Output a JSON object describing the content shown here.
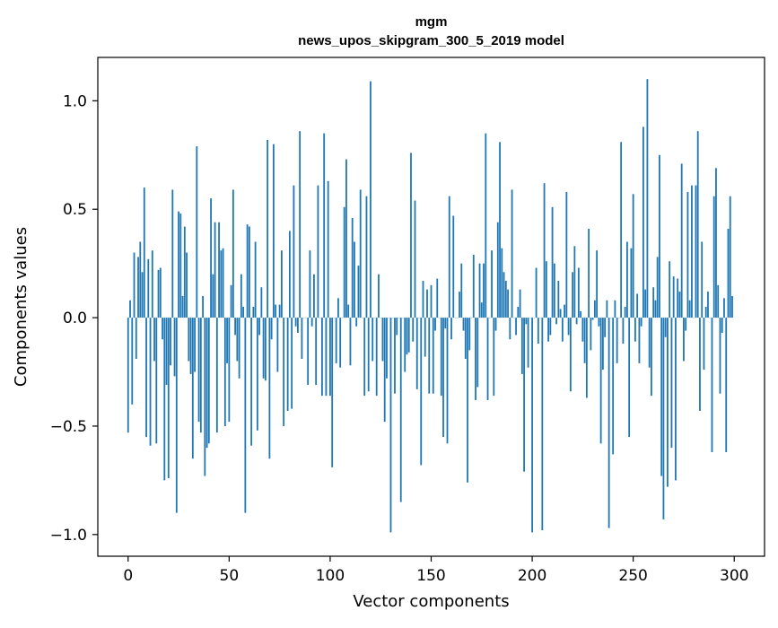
{
  "chart_data": {
    "type": "bar",
    "title": "mgm",
    "subtitle": "news_upos_skipgram_300_5_2019 model",
    "xlabel": "Vector components",
    "ylabel": "Components values",
    "xlim": [
      -15,
      315
    ],
    "ylim": [
      -1.1,
      1.2
    ],
    "xticks": [
      {
        "value": 0,
        "label": "0"
      },
      {
        "value": 50,
        "label": "50"
      },
      {
        "value": 100,
        "label": "100"
      },
      {
        "value": 150,
        "label": "150"
      },
      {
        "value": 200,
        "label": "200"
      },
      {
        "value": 250,
        "label": "250"
      },
      {
        "value": 300,
        "label": "300"
      }
    ],
    "yticks": [
      {
        "value": -1.0,
        "label": "−1.0"
      },
      {
        "value": -0.5,
        "label": "−0.5"
      },
      {
        "value": 0.0,
        "label": "0.0"
      },
      {
        "value": 0.5,
        "label": "0.5"
      },
      {
        "value": 1.0,
        "label": "1.0"
      }
    ],
    "grid": false,
    "bar_color": "#1f77b4",
    "series": [
      {
        "values": [
          -0.53,
          0.08,
          -0.4,
          0.3,
          -0.19,
          0.28,
          0.35,
          0.21,
          0.6,
          -0.55,
          0.27,
          -0.59,
          0.31,
          -0.2,
          -0.58,
          0.22,
          0.23,
          -0.1,
          -0.75,
          -0.31,
          -0.74,
          -0.22,
          0.59,
          -0.27,
          -0.9,
          0.49,
          0.48,
          0.1,
          0.42,
          0.3,
          -0.2,
          -0.26,
          -0.65,
          -0.25,
          0.79,
          -0.48,
          -0.53,
          0.1,
          -0.73,
          -0.6,
          -0.58,
          0.55,
          0.2,
          0.44,
          -0.53,
          0.44,
          0.31,
          0.32,
          -0.5,
          -0.21,
          -0.48,
          0.15,
          0.59,
          -0.08,
          -0.2,
          -0.28,
          0.2,
          0.05,
          -0.9,
          0.43,
          0.42,
          -0.59,
          0.05,
          0.35,
          -0.52,
          -0.08,
          0.14,
          -0.28,
          -0.29,
          0.82,
          -0.65,
          -0.1,
          0.8,
          0.06,
          -0.25,
          0.06,
          0.31,
          -0.5,
          0.0,
          -0.43,
          0.4,
          -0.42,
          0.61,
          -0.04,
          -0.07,
          0.86,
          -0.19,
          0.0,
          0.0,
          -0.31,
          0.31,
          -0.04,
          0.2,
          -0.31,
          0.61,
          0.0,
          -0.36,
          0.85,
          -0.36,
          0.63,
          -0.36,
          -0.69,
          0.0,
          -0.21,
          0.09,
          -0.23,
          0.0,
          0.51,
          0.73,
          0.06,
          -0.22,
          0.46,
          0.35,
          -0.04,
          0.24,
          0.59,
          0.0,
          -0.36,
          0.56,
          -0.34,
          1.09,
          -0.2,
          0.0,
          -0.36,
          0.2,
          0.0,
          -0.2,
          -0.48,
          -0.28,
          0.0,
          -0.99,
          0.0,
          -0.35,
          -0.08,
          0.0,
          -0.85,
          0.0,
          -0.25,
          -0.17,
          -0.16,
          0.76,
          -0.11,
          0.54,
          -0.33,
          0.0,
          -0.68,
          0.17,
          -0.18,
          0.13,
          -0.35,
          0.15,
          -0.35,
          -0.06,
          0.18,
          0.0,
          -0.36,
          -0.55,
          -0.05,
          -0.58,
          0.56,
          -0.1,
          0.47,
          0.0,
          0.0,
          0.12,
          0.25,
          -0.06,
          -0.19,
          -0.76,
          -0.15,
          0.0,
          0.29,
          -0.38,
          -0.32,
          0.25,
          0.07,
          0.25,
          0.85,
          -0.38,
          0.0,
          0.31,
          -0.36,
          -0.06,
          0.44,
          0.81,
          0.32,
          0.21,
          0.17,
          0.13,
          -0.1,
          0.59,
          0.0,
          -0.08,
          0.05,
          0.13,
          -0.26,
          -0.71,
          -0.03,
          -0.23,
          0.0,
          -0.99,
          0.0,
          0.23,
          -0.12,
          0.0,
          -0.98,
          0.62,
          0.26,
          -0.11,
          -0.08,
          0.51,
          0.25,
          -0.03,
          0.17,
          0.04,
          -0.11,
          0.06,
          0.58,
          -0.08,
          -0.34,
          0.21,
          0.33,
          -0.03,
          0.23,
          0.03,
          -0.11,
          -0.21,
          -0.37,
          0.41,
          -0.15,
          -0.01,
          0.08,
          0.31,
          -0.04,
          -0.58,
          -0.24,
          -0.09,
          0.08,
          -0.97,
          0.0,
          -0.63,
          0.08,
          -0.21,
          0.0,
          0.81,
          -0.12,
          0.05,
          0.35,
          -0.55,
          0.32,
          0.57,
          -0.11,
          0.11,
          -0.21,
          -0.04,
          0.88,
          0.13,
          1.1,
          -0.23,
          -0.36,
          0.14,
          0.08,
          0.28,
          0.75,
          -0.73,
          -0.93,
          -0.09,
          -0.78,
          0.26,
          -0.6,
          0.19,
          -0.75,
          0.18,
          0.12,
          0.71,
          -0.2,
          -0.06,
          0.58,
          0.08,
          0.61,
          0.0,
          0.61,
          0.86,
          -0.43,
          0.35,
          -0.24,
          0.05,
          0.12,
          0.0,
          -0.62,
          0.56,
          0.69,
          0.15,
          -0.35,
          -0.07,
          0.09,
          -0.62,
          0.41,
          0.56,
          0.1
        ]
      }
    ]
  }
}
